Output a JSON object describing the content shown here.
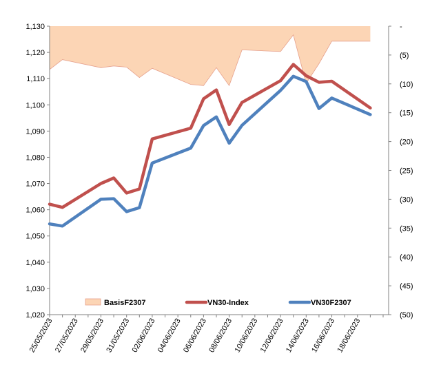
{
  "chart_data": {
    "type": "line",
    "x": [
      "25/05/2023",
      "26/05/2023",
      "29/05/2023",
      "30/05/2023",
      "31/05/2023",
      "01/06/2023",
      "02/06/2023",
      "05/06/2023",
      "06/06/2023",
      "07/06/2023",
      "08/06/2023",
      "09/06/2023",
      "12/06/2023",
      "13/06/2023",
      "14/06/2023",
      "15/06/2023",
      "16/06/2023",
      "19/06/2023"
    ],
    "x_tick_labels": [
      "25/05/2023",
      "27/05/2023",
      "29/05/2023",
      "31/05/2023",
      "02/06/2023",
      "04/06/2023",
      "06/06/2023",
      "08/06/2023",
      "10/06/2023",
      "12/06/2023",
      "14/06/2023",
      "16/06/2023",
      "18/06/2023"
    ],
    "y_left": {
      "ylim": [
        1020,
        1130
      ],
      "ticks": [
        1130,
        1120,
        1110,
        1100,
        1090,
        1080,
        1070,
        1060,
        1050,
        1040,
        1030,
        1020
      ],
      "tick_labels": [
        "1,130",
        "1,120",
        "1,110",
        "1,100",
        "1,090",
        "1,080",
        "1,070",
        "1,060",
        "1,050",
        "1,040",
        "1,030",
        "1,020"
      ]
    },
    "y_right": {
      "ylim": [
        -50,
        0
      ],
      "ticks": [
        0,
        -5,
        -10,
        -15,
        -20,
        -25,
        -30,
        -35,
        -40,
        -45,
        -50
      ],
      "tick_labels": [
        "-",
        "(5)",
        "(10)",
        "(15)",
        "(20)",
        "(25)",
        "(30)",
        "(35)",
        "(40)",
        "(45)",
        "(50)"
      ]
    },
    "series": [
      {
        "name": "BasisF2307",
        "kind": "area",
        "axis": "right",
        "color": "#fcd5b5",
        "edge_color": "#e6a08c",
        "values": [
          -7.5,
          -5.8,
          -7.2,
          -6.9,
          -7.1,
          -8.9,
          -7.3,
          -10.1,
          -10.3,
          -7.2,
          -10.3,
          -4.1,
          -4.4,
          -1.5,
          -9.9,
          -6.5,
          -2.6,
          -2.6
        ]
      },
      {
        "name": "VN30-Index",
        "kind": "line",
        "axis": "left",
        "color": "#c0504d",
        "values": [
          1062.1,
          1060.9,
          1070.0,
          1072.1,
          1066.4,
          1067.9,
          1087.0,
          1091.1,
          1102.3,
          1105.7,
          1092.5,
          1100.9,
          1109.2,
          1115.4,
          1111.1,
          1108.6,
          1109.0,
          1098.8
        ]
      },
      {
        "name": "VN30F2307",
        "kind": "line",
        "axis": "left",
        "color": "#4f81bd",
        "values": [
          1054.6,
          1053.8,
          1064.0,
          1064.2,
          1059.3,
          1060.8,
          1077.8,
          1083.5,
          1092.1,
          1095.4,
          1085.4,
          1092.2,
          1105.5,
          1110.9,
          1108.9,
          1098.6,
          1102.6,
          1096.3
        ]
      }
    ],
    "legend": {
      "placement": "bottom-inside",
      "entries": [
        "BasisF2307",
        "VN30-Index",
        "VN30F2307"
      ]
    },
    "grid": false
  }
}
